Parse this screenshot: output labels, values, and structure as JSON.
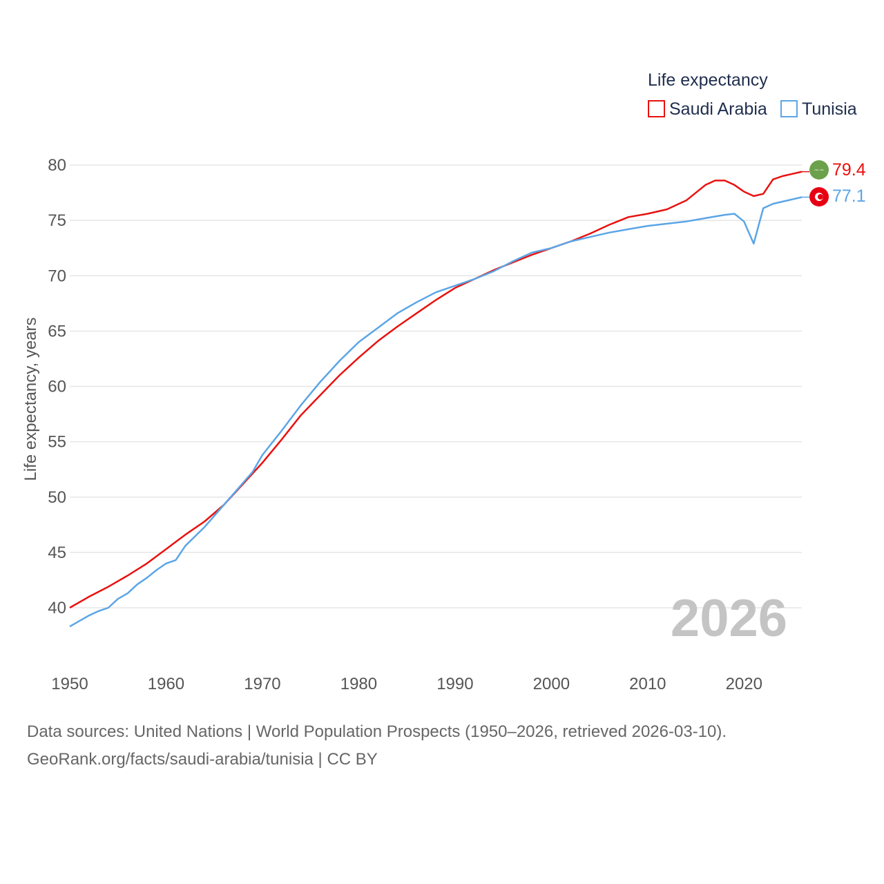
{
  "legend": {
    "title": "Life expectancy",
    "items": [
      {
        "name": "Saudi Arabia",
        "color": "#e8110f"
      },
      {
        "name": "Tunisia",
        "color": "#5ba5e6"
      }
    ]
  },
  "year_label": "2026",
  "end_labels": {
    "saudi": "79.4",
    "tunisia": "77.1"
  },
  "flags": {
    "saudi": {
      "color": "#6ca14b",
      "icon": "saudi-arabia-flag-icon"
    },
    "tunisia": {
      "color": "#e70013",
      "icon": "tunisia-flag-icon"
    }
  },
  "footer": {
    "line1": "Data sources: United Nations | World Population Prospects (1950–2026, retrieved 2026-03-10).",
    "line2": "GeoRank.org/facts/saudi-arabia/tunisia | CC BY"
  },
  "chart_data": {
    "type": "line",
    "title": "Life expectancy",
    "xlabel": "",
    "ylabel": "Life expectancy, years",
    "xlim": [
      1950,
      2026
    ],
    "ylim": [
      35,
      82
    ],
    "xticks": [
      1950,
      1960,
      1970,
      1980,
      1990,
      2000,
      2010,
      2020
    ],
    "yticks": [
      40,
      45,
      50,
      55,
      60,
      65,
      70,
      75,
      80
    ],
    "series": [
      {
        "name": "Saudi Arabia",
        "color": "#e8110f",
        "points": [
          [
            1950,
            40.0
          ],
          [
            1952,
            41.0
          ],
          [
            1954,
            41.9
          ],
          [
            1956,
            42.9
          ],
          [
            1958,
            44.0
          ],
          [
            1960,
            45.3
          ],
          [
            1962,
            46.6
          ],
          [
            1964,
            47.8
          ],
          [
            1966,
            49.3
          ],
          [
            1968,
            51.2
          ],
          [
            1970,
            53.1
          ],
          [
            1972,
            55.2
          ],
          [
            1974,
            57.4
          ],
          [
            1976,
            59.2
          ],
          [
            1978,
            61.0
          ],
          [
            1980,
            62.6
          ],
          [
            1982,
            64.1
          ],
          [
            1984,
            65.4
          ],
          [
            1986,
            66.6
          ],
          [
            1988,
            67.8
          ],
          [
            1990,
            68.9
          ],
          [
            1992,
            69.7
          ],
          [
            1994,
            70.5
          ],
          [
            1996,
            71.2
          ],
          [
            1998,
            71.9
          ],
          [
            2000,
            72.5
          ],
          [
            2002,
            73.1
          ],
          [
            2004,
            73.8
          ],
          [
            2006,
            74.6
          ],
          [
            2008,
            75.3
          ],
          [
            2010,
            75.6
          ],
          [
            2012,
            76.0
          ],
          [
            2014,
            76.8
          ],
          [
            2016,
            78.2
          ],
          [
            2017,
            78.6
          ],
          [
            2018,
            78.6
          ],
          [
            2019,
            78.2
          ],
          [
            2020,
            77.6
          ],
          [
            2021,
            77.2
          ],
          [
            2022,
            77.4
          ],
          [
            2023,
            78.7
          ],
          [
            2024,
            79.0
          ],
          [
            2025,
            79.2
          ],
          [
            2026,
            79.4
          ]
        ]
      },
      {
        "name": "Tunisia",
        "color": "#5ba5e6",
        "points": [
          [
            1950,
            38.3
          ],
          [
            1951,
            38.8
          ],
          [
            1952,
            39.3
          ],
          [
            1953,
            39.7
          ],
          [
            1954,
            40.0
          ],
          [
            1955,
            40.8
          ],
          [
            1956,
            41.3
          ],
          [
            1957,
            42.1
          ],
          [
            1958,
            42.7
          ],
          [
            1959,
            43.4
          ],
          [
            1960,
            44.0
          ],
          [
            1961,
            44.3
          ],
          [
            1962,
            45.6
          ],
          [
            1964,
            47.3
          ],
          [
            1966,
            49.3
          ],
          [
            1968,
            51.3
          ],
          [
            1969,
            52.3
          ],
          [
            1970,
            53.8
          ],
          [
            1972,
            56.0
          ],
          [
            1974,
            58.3
          ],
          [
            1976,
            60.4
          ],
          [
            1978,
            62.3
          ],
          [
            1980,
            64.0
          ],
          [
            1982,
            65.3
          ],
          [
            1984,
            66.6
          ],
          [
            1986,
            67.6
          ],
          [
            1988,
            68.5
          ],
          [
            1990,
            69.1
          ],
          [
            1992,
            69.7
          ],
          [
            1994,
            70.4
          ],
          [
            1996,
            71.3
          ],
          [
            1998,
            72.1
          ],
          [
            2000,
            72.5
          ],
          [
            2002,
            73.1
          ],
          [
            2004,
            73.5
          ],
          [
            2006,
            73.9
          ],
          [
            2008,
            74.2
          ],
          [
            2010,
            74.5
          ],
          [
            2012,
            74.7
          ],
          [
            2014,
            74.9
          ],
          [
            2016,
            75.2
          ],
          [
            2018,
            75.5
          ],
          [
            2019,
            75.6
          ],
          [
            2020,
            74.9
          ],
          [
            2021,
            72.9
          ],
          [
            2022,
            76.1
          ],
          [
            2023,
            76.5
          ],
          [
            2024,
            76.7
          ],
          [
            2025,
            76.9
          ],
          [
            2026,
            77.1
          ]
        ]
      }
    ]
  }
}
